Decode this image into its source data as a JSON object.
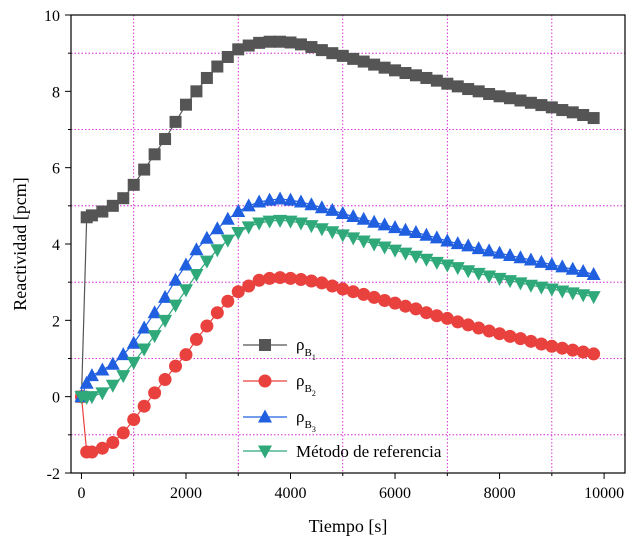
{
  "chart_data": {
    "type": "line",
    "xlabel": "Tiempo [s]",
    "ylabel": "Reactividad [pcm]",
    "xlim": [
      -200,
      10400
    ],
    "ylim": [
      -2,
      10
    ],
    "xticks": [
      0,
      2000,
      4000,
      6000,
      8000,
      10000
    ],
    "yticks": [
      -2,
      0,
      2,
      4,
      6,
      8,
      10
    ],
    "grid": {
      "style": "dotted",
      "color": "#cc00cc",
      "minor_x": [
        1000,
        3000,
        5000,
        7000,
        9000
      ],
      "minor_y": [
        -1,
        1,
        3,
        5,
        7,
        9
      ]
    },
    "legend_position": "bottom-center",
    "series": [
      {
        "legend": {
          "base": "ρ",
          "sub": "B",
          "subsub": "1"
        },
        "color": "#555555",
        "marker": "square",
        "x": [
          0,
          100,
          200,
          400,
          600,
          800,
          1000,
          1200,
          1400,
          1600,
          1800,
          2000,
          2200,
          2400,
          2600,
          2800,
          3000,
          3200,
          3400,
          3600,
          3800,
          4000,
          4200,
          4400,
          4600,
          4800,
          5000,
          5200,
          5400,
          5600,
          5800,
          6000,
          6200,
          6400,
          6600,
          6800,
          7000,
          7200,
          7400,
          7600,
          7800,
          8000,
          8200,
          8400,
          8600,
          8800,
          9000,
          9200,
          9400,
          9600,
          9800
        ],
        "y": [
          0,
          4.7,
          4.75,
          4.85,
          5.0,
          5.2,
          5.55,
          5.95,
          6.35,
          6.75,
          7.2,
          7.65,
          8.0,
          8.35,
          8.65,
          8.9,
          9.1,
          9.2,
          9.27,
          9.3,
          9.3,
          9.28,
          9.23,
          9.16,
          9.08,
          9.0,
          8.93,
          8.85,
          8.78,
          8.7,
          8.62,
          8.55,
          8.48,
          8.42,
          8.35,
          8.28,
          8.2,
          8.13,
          8.06,
          8.0,
          7.93,
          7.87,
          7.82,
          7.76,
          7.7,
          7.64,
          7.58,
          7.51,
          7.45,
          7.38,
          7.3
        ]
      },
      {
        "legend": {
          "base": "ρ",
          "sub": "B",
          "subsub": "2"
        },
        "color": "#e8413e",
        "marker": "circle",
        "x": [
          0,
          100,
          200,
          400,
          600,
          800,
          1000,
          1200,
          1400,
          1600,
          1800,
          2000,
          2200,
          2400,
          2600,
          2800,
          3000,
          3200,
          3400,
          3600,
          3800,
          4000,
          4200,
          4400,
          4600,
          4800,
          5000,
          5200,
          5400,
          5600,
          5800,
          6000,
          6200,
          6400,
          6600,
          6800,
          7000,
          7200,
          7400,
          7600,
          7800,
          8000,
          8200,
          8400,
          8600,
          8800,
          9000,
          9200,
          9400,
          9600,
          9800
        ],
        "y": [
          0,
          -1.45,
          -1.45,
          -1.35,
          -1.2,
          -0.95,
          -0.6,
          -0.25,
          0.1,
          0.45,
          0.8,
          1.1,
          1.5,
          1.85,
          2.2,
          2.5,
          2.75,
          2.9,
          3.05,
          3.1,
          3.12,
          3.1,
          3.07,
          3.03,
          2.98,
          2.9,
          2.82,
          2.75,
          2.68,
          2.6,
          2.52,
          2.45,
          2.37,
          2.3,
          2.2,
          2.12,
          2.05,
          1.96,
          1.88,
          1.8,
          1.72,
          1.65,
          1.58,
          1.52,
          1.45,
          1.38,
          1.32,
          1.27,
          1.22,
          1.17,
          1.12
        ]
      },
      {
        "legend": {
          "base": "ρ",
          "sub": "B",
          "subsub": "3"
        },
        "color": "#2060e0",
        "marker": "triangle-up",
        "x": [
          0,
          100,
          200,
          400,
          600,
          800,
          1000,
          1200,
          1400,
          1600,
          1800,
          2000,
          2200,
          2400,
          2600,
          2800,
          3000,
          3200,
          3400,
          3600,
          3800,
          4000,
          4200,
          4400,
          4600,
          4800,
          5000,
          5200,
          5400,
          5600,
          5800,
          6000,
          6200,
          6400,
          6600,
          6800,
          7000,
          7200,
          7400,
          7600,
          7800,
          8000,
          8200,
          8400,
          8600,
          8800,
          9000,
          9200,
          9400,
          9600,
          9800
        ],
        "y": [
          0,
          0.35,
          0.55,
          0.7,
          0.85,
          1.1,
          1.4,
          1.8,
          2.2,
          2.6,
          3.05,
          3.45,
          3.85,
          4.15,
          4.4,
          4.65,
          4.85,
          5.0,
          5.1,
          5.15,
          5.18,
          5.15,
          5.1,
          5.03,
          4.95,
          4.88,
          4.8,
          4.72,
          4.65,
          4.57,
          4.5,
          4.43,
          4.36,
          4.3,
          4.23,
          4.16,
          4.08,
          4.01,
          3.95,
          3.88,
          3.82,
          3.76,
          3.7,
          3.64,
          3.58,
          3.52,
          3.46,
          3.4,
          3.34,
          3.28,
          3.2
        ]
      },
      {
        "legend": {
          "base": "Método de referencia"
        },
        "color": "#2fa87a",
        "marker": "triangle-down",
        "x": [
          0,
          100,
          200,
          400,
          600,
          800,
          1000,
          1200,
          1400,
          1600,
          1800,
          2000,
          2200,
          2400,
          2600,
          2800,
          3000,
          3200,
          3400,
          3600,
          3800,
          4000,
          4200,
          4400,
          4600,
          4800,
          5000,
          5200,
          5400,
          5600,
          5800,
          6000,
          6200,
          6400,
          6600,
          6800,
          7000,
          7200,
          7400,
          7600,
          7800,
          8000,
          8200,
          8400,
          8600,
          8800,
          9000,
          9200,
          9400,
          9600,
          9800
        ],
        "y": [
          0,
          -0.02,
          0.0,
          0.1,
          0.3,
          0.55,
          0.9,
          1.25,
          1.6,
          2.0,
          2.4,
          2.8,
          3.2,
          3.55,
          3.85,
          4.1,
          4.3,
          4.45,
          4.55,
          4.6,
          4.62,
          4.6,
          4.55,
          4.48,
          4.4,
          4.32,
          4.24,
          4.16,
          4.08,
          4.0,
          3.92,
          3.84,
          3.76,
          3.68,
          3.6,
          3.52,
          3.45,
          3.38,
          3.3,
          3.23,
          3.16,
          3.1,
          3.04,
          2.98,
          2.92,
          2.87,
          2.82,
          2.77,
          2.72,
          2.67,
          2.62
        ]
      }
    ]
  }
}
